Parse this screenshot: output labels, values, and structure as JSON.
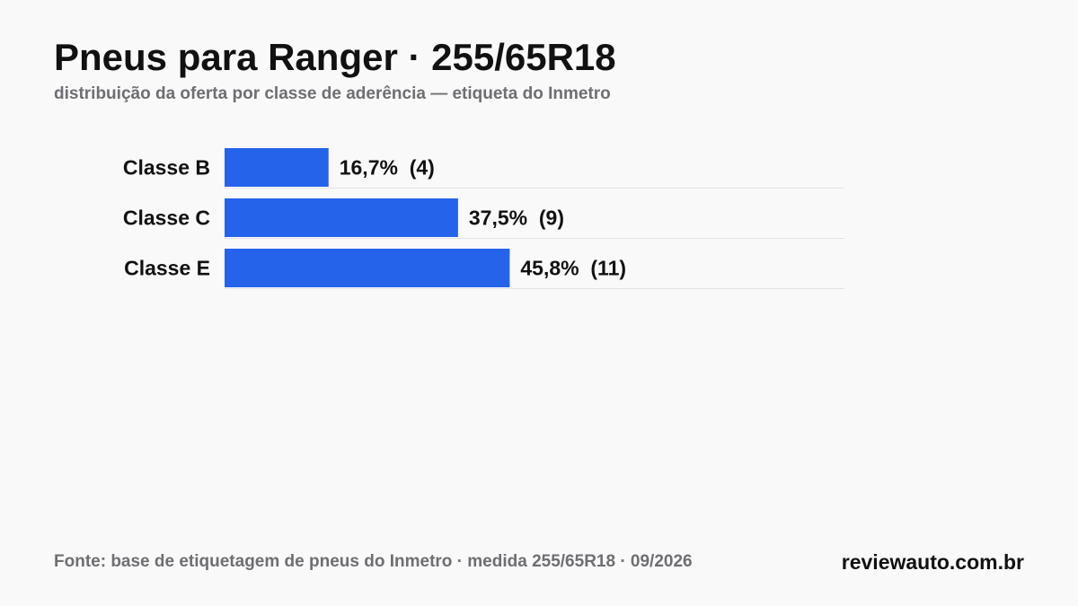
{
  "chart_data": {
    "type": "bar",
    "orientation": "horizontal",
    "title": "Pneus para Ranger · 255/65R18",
    "subtitle": "distribuição da oferta por classe de aderência — etiqueta do Inmetro",
    "categories": [
      "Classe B",
      "Classe C",
      "Classe E"
    ],
    "values": [
      16.7,
      37.5,
      45.8
    ],
    "counts": [
      4,
      9,
      11
    ],
    "value_labels": [
      "16,7%  (4)",
      "37,5%  (9)",
      "45,8%  (11)"
    ],
    "unit": "%",
    "xlim": [
      0,
      100
    ],
    "grid": false,
    "legend": "none",
    "bar_color": "#2563eb"
  },
  "footer": {
    "source": "Fonte: base de etiquetagem de pneus do Inmetro · medida 255/65R18 · 09/2026",
    "brand": "reviewauto.com.br"
  }
}
